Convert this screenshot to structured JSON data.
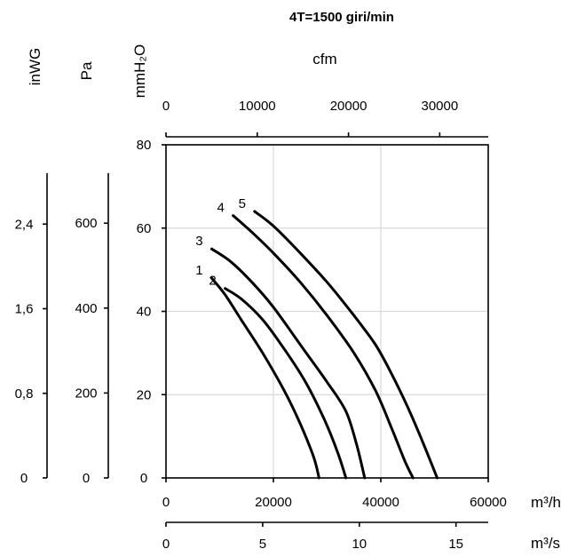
{
  "chart_data": {
    "type": "line",
    "title": "4T=1500 giri/min",
    "xlim": [
      0,
      60000
    ],
    "ylim": [
      0,
      80
    ],
    "x_unit": "m³/h",
    "y_unit": "mmH₂O",
    "x_ticks": [
      "0",
      "20000",
      "40000",
      "60000"
    ],
    "y_ticks": [
      "0",
      "20",
      "40",
      "60",
      "80"
    ],
    "secondary_x_axes": [
      {
        "unit": "m³/s",
        "ticks": [
          "0",
          "5",
          "10",
          "15"
        ],
        "values": [
          0,
          5,
          10,
          15
        ]
      },
      {
        "unit": "cfm",
        "ticks": [
          "0",
          "10000",
          "20000",
          "30000"
        ],
        "values": [
          0,
          10000,
          20000,
          30000
        ]
      }
    ],
    "secondary_y_axes": [
      {
        "unit": "Pa",
        "ticks": [
          "0",
          "200",
          "400",
          "600"
        ],
        "values": [
          0,
          200,
          400,
          600
        ]
      },
      {
        "unit": "inWG",
        "ticks": [
          "0",
          "0,8",
          "1,6",
          "2,4"
        ],
        "values": [
          0,
          0.8,
          1.6,
          2.4
        ]
      }
    ],
    "grid": true,
    "series": [
      {
        "name": "1",
        "points": [
          [
            8500,
            48
          ],
          [
            11000,
            44
          ],
          [
            14000,
            38
          ],
          [
            18000,
            30
          ],
          [
            22000,
            21
          ],
          [
            25000,
            13
          ],
          [
            27500,
            5
          ],
          [
            28500,
            0
          ]
        ]
      },
      {
        "name": "2",
        "points": [
          [
            11000,
            45.5
          ],
          [
            14000,
            43
          ],
          [
            18000,
            38
          ],
          [
            22000,
            31
          ],
          [
            26000,
            23
          ],
          [
            29500,
            14
          ],
          [
            32000,
            6
          ],
          [
            33500,
            0
          ]
        ]
      },
      {
        "name": "3",
        "points": [
          [
            8500,
            55
          ],
          [
            12000,
            52
          ],
          [
            16000,
            47
          ],
          [
            20000,
            41
          ],
          [
            25000,
            32
          ],
          [
            30000,
            23
          ],
          [
            33500,
            16
          ],
          [
            35500,
            8
          ],
          [
            37000,
            0
          ]
        ]
      },
      {
        "name": "4",
        "points": [
          [
            12500,
            63
          ],
          [
            16000,
            59
          ],
          [
            20000,
            54
          ],
          [
            25000,
            47
          ],
          [
            30000,
            39
          ],
          [
            35000,
            30
          ],
          [
            39000,
            21
          ],
          [
            42000,
            12
          ],
          [
            44500,
            4
          ],
          [
            46000,
            0
          ]
        ]
      },
      {
        "name": "5",
        "points": [
          [
            16500,
            64
          ],
          [
            20000,
            60.5
          ],
          [
            25000,
            54
          ],
          [
            30000,
            47
          ],
          [
            35000,
            39
          ],
          [
            39000,
            32
          ],
          [
            42000,
            25
          ],
          [
            45000,
            17
          ],
          [
            48000,
            8
          ],
          [
            50500,
            0
          ]
        ]
      }
    ]
  }
}
